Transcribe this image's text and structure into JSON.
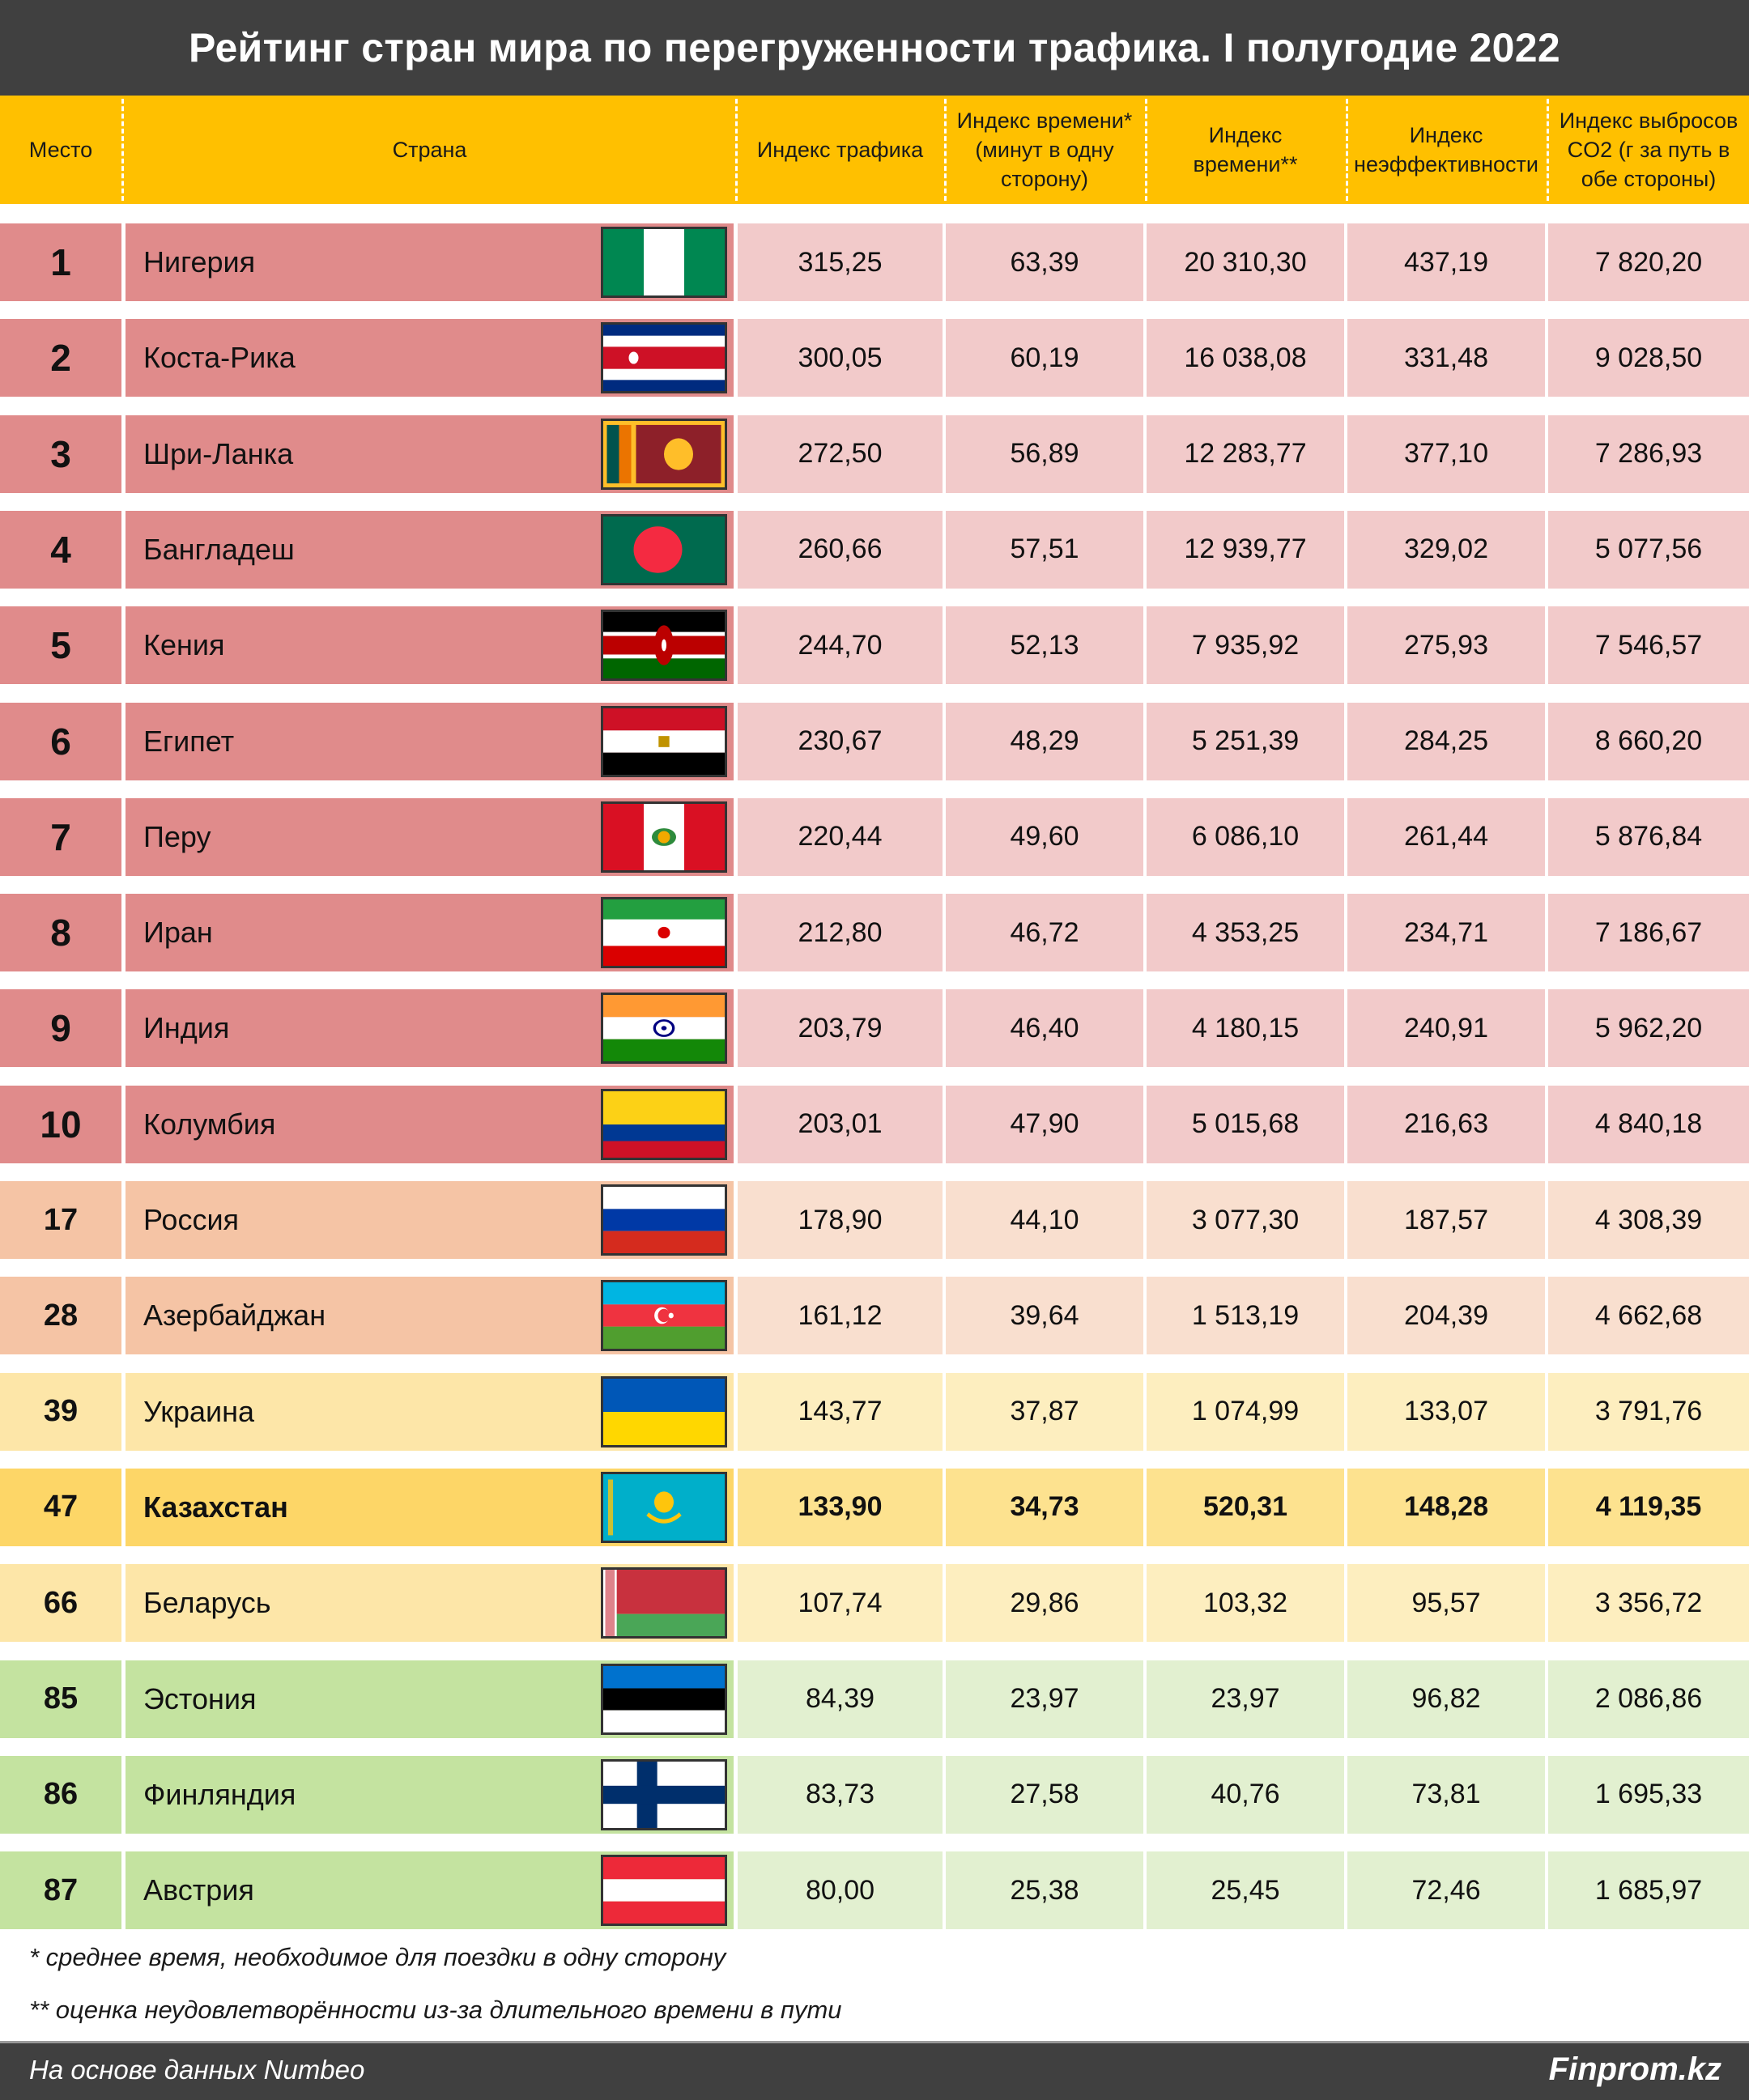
{
  "title": "Рейтинг стран мира по перегруженности трафика. I полугодие 2022",
  "columns": {
    "place": "Место",
    "country": "Страна",
    "traffic_index": "Индекс трафика",
    "time_index_min": "Индекс времени* (минут в одну сторону)",
    "time_index": "Индекс времени**",
    "inefficiency_index": "Индекс неэффективности",
    "co2_index": "Индекс выбросов CO2 (г за путь в обе стороны)"
  },
  "colors": {
    "title_bg": "#404040",
    "header_bg": "#ffc000",
    "tier_top10_dark": "#e08b8b",
    "tier_top10_light": "#f2caca",
    "tier_orange_dark": "#f5c4a5",
    "tier_orange_light": "#f9dfcf",
    "tier_yellow_dark": "#fde6a8",
    "tier_yellow_light": "#fdeebf",
    "tier_kz_dark": "#fdd667",
    "tier_kz_light": "#fde28f",
    "tier_green_dark": "#c4e3a0",
    "tier_green_light": "#e2f0d0"
  },
  "rows": [
    {
      "place": "1",
      "country": "Нигерия",
      "flag": "nigeria",
      "traffic": "315,25",
      "time_min": "63,39",
      "time_index": "20 310,30",
      "inefficiency": "437,19",
      "co2": "7 820,20",
      "tier": "top10"
    },
    {
      "place": "2",
      "country": "Коста-Рика",
      "flag": "costa-rica",
      "traffic": "300,05",
      "time_min": "60,19",
      "time_index": "16 038,08",
      "inefficiency": "331,48",
      "co2": "9 028,50",
      "tier": "top10"
    },
    {
      "place": "3",
      "country": "Шри-Ланка",
      "flag": "sri-lanka",
      "traffic": "272,50",
      "time_min": "56,89",
      "time_index": "12 283,77",
      "inefficiency": "377,10",
      "co2": "7 286,93",
      "tier": "top10"
    },
    {
      "place": "4",
      "country": "Бангладеш",
      "flag": "bangladesh",
      "traffic": "260,66",
      "time_min": "57,51",
      "time_index": "12 939,77",
      "inefficiency": "329,02",
      "co2": "5 077,56",
      "tier": "top10"
    },
    {
      "place": "5",
      "country": "Кения",
      "flag": "kenya",
      "traffic": "244,70",
      "time_min": "52,13",
      "time_index": "7 935,92",
      "inefficiency": "275,93",
      "co2": "7 546,57",
      "tier": "top10"
    },
    {
      "place": "6",
      "country": "Египет",
      "flag": "egypt",
      "traffic": "230,67",
      "time_min": "48,29",
      "time_index": "5 251,39",
      "inefficiency": "284,25",
      "co2": "8 660,20",
      "tier": "top10"
    },
    {
      "place": "7",
      "country": "Перу",
      "flag": "peru",
      "traffic": "220,44",
      "time_min": "49,60",
      "time_index": "6 086,10",
      "inefficiency": "261,44",
      "co2": "5 876,84",
      "tier": "top10"
    },
    {
      "place": "8",
      "country": "Иран",
      "flag": "iran",
      "traffic": "212,80",
      "time_min": "46,72",
      "time_index": "4 353,25",
      "inefficiency": "234,71",
      "co2": "7 186,67",
      "tier": "top10"
    },
    {
      "place": "9",
      "country": "Индия",
      "flag": "india",
      "traffic": "203,79",
      "time_min": "46,40",
      "time_index": "4 180,15",
      "inefficiency": "240,91",
      "co2": "5 962,20",
      "tier": "top10"
    },
    {
      "place": "10",
      "country": "Колумбия",
      "flag": "colombia",
      "traffic": "203,01",
      "time_min": "47,90",
      "time_index": "5 015,68",
      "inefficiency": "216,63",
      "co2": "4 840,18",
      "tier": "top10"
    },
    {
      "place": "17",
      "country": "Россия",
      "flag": "russia",
      "traffic": "178,90",
      "time_min": "44,10",
      "time_index": "3 077,30",
      "inefficiency": "187,57",
      "co2": "4 308,39",
      "tier": "orange"
    },
    {
      "place": "28",
      "country": "Азербайджан",
      "flag": "azerbaijan",
      "traffic": "161,12",
      "time_min": "39,64",
      "time_index": "1 513,19",
      "inefficiency": "204,39",
      "co2": "4 662,68",
      "tier": "orange"
    },
    {
      "place": "39",
      "country": "Украина",
      "flag": "ukraine",
      "traffic": "143,77",
      "time_min": "37,87",
      "time_index": "1 074,99",
      "inefficiency": "133,07",
      "co2": "3 791,76",
      "tier": "yellow"
    },
    {
      "place": "47",
      "country": "Казахстан",
      "flag": "kazakhstan",
      "traffic": "133,90",
      "time_min": "34,73",
      "time_index": "520,31",
      "inefficiency": "148,28",
      "co2": "4 119,35",
      "tier": "kz",
      "highlighted": true
    },
    {
      "place": "66",
      "country": "Беларусь",
      "flag": "belarus",
      "traffic": "107,74",
      "time_min": "29,86",
      "time_index": "103,32",
      "inefficiency": "95,57",
      "co2": "3 356,72",
      "tier": "yellow"
    },
    {
      "place": "85",
      "country": "Эстония",
      "flag": "estonia",
      "traffic": "84,39",
      "time_min": "23,97",
      "time_index": "23,97",
      "inefficiency": "96,82",
      "co2": "2 086,86",
      "tier": "green"
    },
    {
      "place": "86",
      "country": "Финляндия",
      "flag": "finland",
      "traffic": "83,73",
      "time_min": "27,58",
      "time_index": "40,76",
      "inefficiency": "73,81",
      "co2": "1 695,33",
      "tier": "green"
    },
    {
      "place": "87",
      "country": "Австрия",
      "flag": "austria",
      "traffic": "80,00",
      "time_min": "25,38",
      "time_index": "25,45",
      "inefficiency": "72,46",
      "co2": "1 685,97",
      "tier": "green"
    }
  ],
  "footnotes": [
    "* среднее время, необходимое для поездки в одну сторону",
    "** оценка неудовлетворённости из-за длительного времени в пути"
  ],
  "footer": {
    "source": "На основе данных Numbeo",
    "brand": "Finprom.kz"
  }
}
